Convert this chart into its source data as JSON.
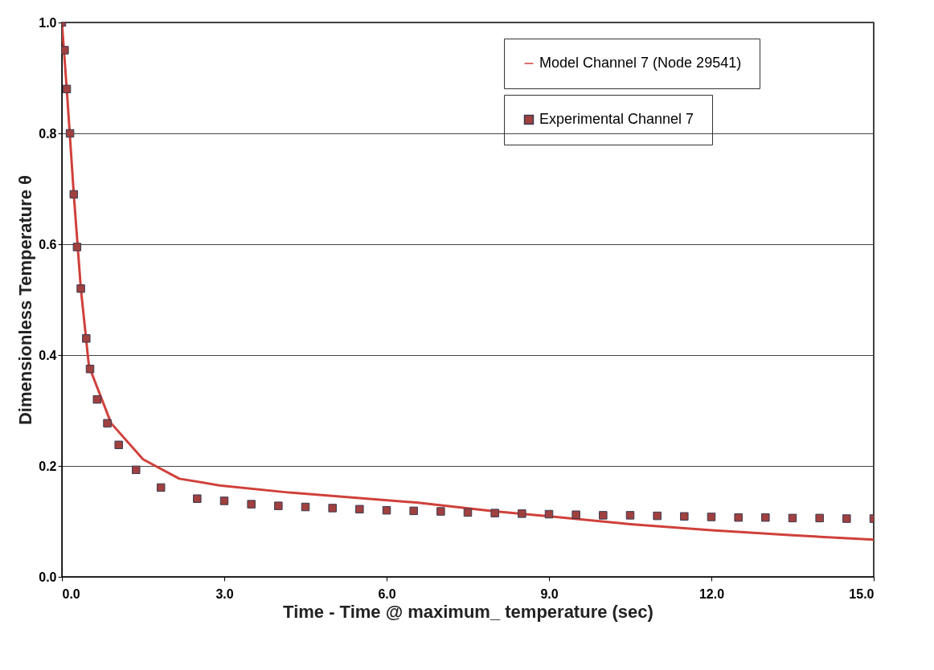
{
  "chart_data": {
    "type": "line",
    "xlabel": "Time - Time @ maximum_ temperature (sec)",
    "ylabel": "Dimensionless Temperature θ",
    "xlim": [
      0,
      15
    ],
    "ylim": [
      0,
      1
    ],
    "xticks": [
      {
        "value": 0,
        "label": "0.0"
      },
      {
        "value": 3,
        "label": "3.0"
      },
      {
        "value": 6,
        "label": "6.0"
      },
      {
        "value": 9,
        "label": "9.0"
      },
      {
        "value": 12,
        "label": "12.0"
      },
      {
        "value": 15,
        "label": "15.0"
      }
    ],
    "yticks": [
      {
        "value": 0,
        "label": "0.0"
      },
      {
        "value": 0.2,
        "label": "0.2"
      },
      {
        "value": 0.4,
        "label": "0.4"
      },
      {
        "value": 0.6,
        "label": "0.6"
      },
      {
        "value": 0.8,
        "label": "0.8"
      },
      {
        "value": 1,
        "label": "1.0"
      }
    ],
    "grid": "y",
    "legend": "top right",
    "series": [
      {
        "name": "Model Channel 7 (Node 29541)",
        "color": "#d0403a",
        "marker": "none",
        "line_style": "solid",
        "x": [
          0,
          0.09,
          0.22,
          0.35,
          0.5,
          0.91,
          1.5,
          2.17,
          2.91,
          4.2,
          5.5,
          6.55,
          8.0,
          9.13,
          10.5,
          12.0,
          13.5,
          15.0
        ],
        "values": [
          1.0,
          0.88,
          0.69,
          0.52,
          0.38,
          0.277,
          0.212,
          0.177,
          0.165,
          0.152,
          0.142,
          0.134,
          0.118,
          0.108,
          0.095,
          0.084,
          0.075,
          0.067
        ]
      },
      {
        "name": "Experimental Channel 7",
        "type": "scatter",
        "color": "#a0403f",
        "marker": "square",
        "x": [
          0.0,
          0.05,
          0.09,
          0.15,
          0.22,
          0.28,
          0.35,
          0.45,
          0.52,
          0.65,
          0.84,
          1.05,
          1.37,
          1.83,
          2.5,
          3.0,
          3.5,
          4.0,
          4.5,
          5.0,
          5.5,
          6.0,
          6.5,
          7.0,
          7.5,
          8.0,
          8.5,
          9.0,
          9.5,
          10.0,
          10.5,
          11.0,
          11.5,
          12.0,
          12.5,
          13.0,
          13.5,
          14.0,
          14.5,
          15.0
        ],
        "values": [
          1.0,
          0.95,
          0.88,
          0.8,
          0.69,
          0.595,
          0.52,
          0.43,
          0.375,
          0.32,
          0.277,
          0.238,
          0.193,
          0.161,
          0.141,
          0.137,
          0.131,
          0.128,
          0.126,
          0.124,
          0.122,
          0.12,
          0.119,
          0.118,
          0.116,
          0.115,
          0.114,
          0.113,
          0.112,
          0.111,
          0.111,
          0.11,
          0.109,
          0.108,
          0.107,
          0.107,
          0.106,
          0.106,
          0.105,
          0.105
        ]
      }
    ]
  }
}
